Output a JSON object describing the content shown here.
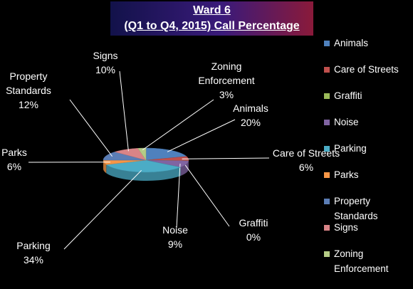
{
  "chart_data": {
    "type": "pie",
    "title": "Ward 6",
    "subtitle": "(Q1 to Q4, 2015)  Call Percentage",
    "categories": [
      "Animals",
      "Care of Streets",
      "Graffiti",
      "Noise",
      "Parking",
      "Parks",
      "Property Standards",
      "Signs",
      "Zoning Enforcement"
    ],
    "values": [
      20,
      6,
      0,
      9,
      34,
      6,
      12,
      10,
      3
    ],
    "value_labels": [
      "20%",
      "6%",
      "0%",
      "9%",
      "34%",
      "6%",
      "12%",
      "10%",
      "3%"
    ],
    "colors": [
      "#4f81bd",
      "#c0504d",
      "#9bbb59",
      "#8064a2",
      "#4bacc6",
      "#f79646",
      "#5b7db5",
      "#d98487",
      "#b5cc86"
    ],
    "legend": "right"
  }
}
